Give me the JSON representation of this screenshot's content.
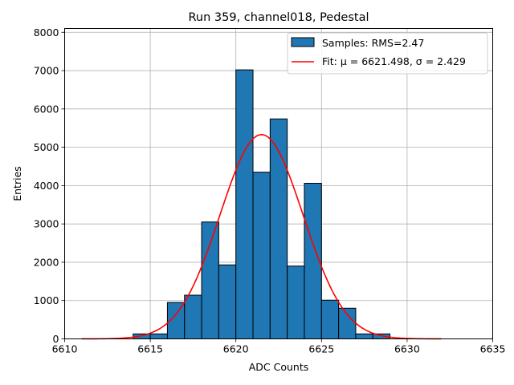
{
  "chart_data": {
    "type": "bar",
    "title": "Run 359, channel018, Pedestal",
    "xlabel": "ADC Counts",
    "ylabel": "Entries",
    "xlim": [
      6610,
      6635
    ],
    "ylim": [
      0,
      8100
    ],
    "xticks": [
      6610,
      6615,
      6620,
      6625,
      6630,
      6635
    ],
    "yticks": [
      0,
      1000,
      2000,
      3000,
      4000,
      5000,
      6000,
      7000,
      8000
    ],
    "grid": true,
    "legend_position": "top-right",
    "histogram": {
      "name": "Samples: RMS=2.47",
      "color": "#1f77b4",
      "edgecolor": "#000000",
      "bins": [
        {
          "x0": 6614,
          "x1": 6615,
          "value": 130
        },
        {
          "x0": 6615,
          "x1": 6616,
          "value": 130
        },
        {
          "x0": 6616,
          "x1": 6617,
          "value": 950
        },
        {
          "x0": 6617,
          "x1": 6618,
          "value": 1140
        },
        {
          "x0": 6618,
          "x1": 6619,
          "value": 3050
        },
        {
          "x0": 6619,
          "x1": 6620,
          "value": 1930
        },
        {
          "x0": 6620,
          "x1": 6621,
          "value": 7020
        },
        {
          "x0": 6621,
          "x1": 6622,
          "value": 4350
        },
        {
          "x0": 6622,
          "x1": 6623,
          "value": 5740
        },
        {
          "x0": 6623,
          "x1": 6624,
          "value": 1900
        },
        {
          "x0": 6624,
          "x1": 6625,
          "value": 4060
        },
        {
          "x0": 6625,
          "x1": 6626,
          "value": 1010
        },
        {
          "x0": 6626,
          "x1": 6627,
          "value": 800
        },
        {
          "x0": 6627,
          "x1": 6628,
          "value": 130
        },
        {
          "x0": 6628,
          "x1": 6629,
          "value": 130
        }
      ]
    },
    "fit": {
      "name": "Fit: μ = 6621.498, σ = 2.429",
      "color": "#ff0000",
      "type": "gaussian",
      "mu": 6621.498,
      "sigma": 2.429,
      "amplitude": 5330,
      "x_range": [
        6611,
        6632
      ]
    }
  }
}
